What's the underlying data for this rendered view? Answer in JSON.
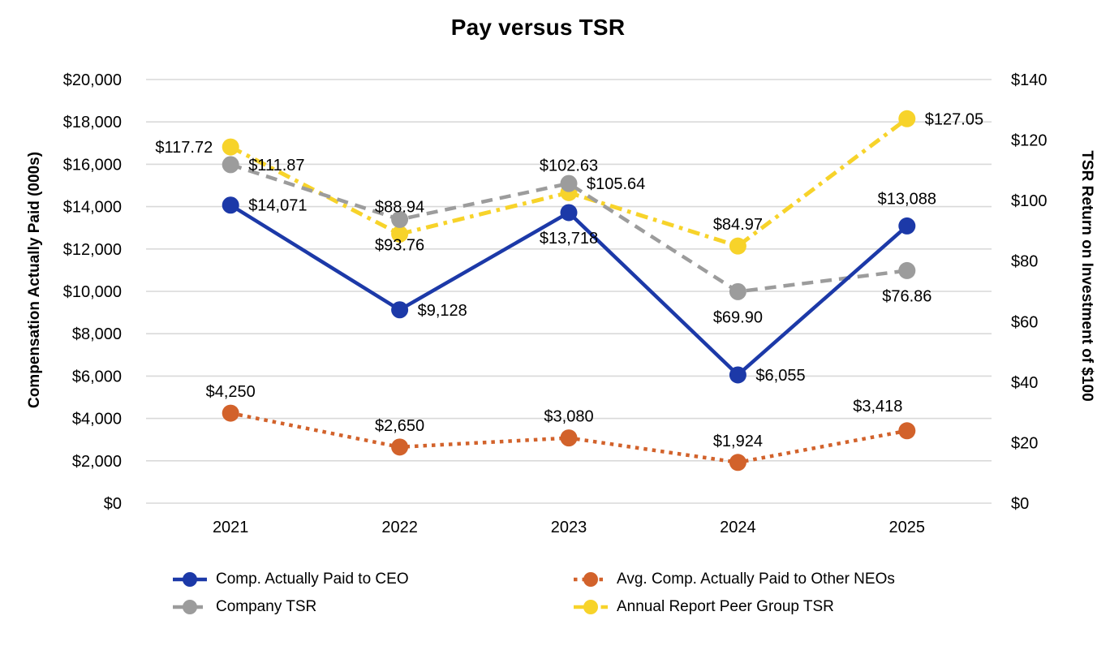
{
  "title": "Pay versus TSR",
  "chart_data": {
    "type": "line",
    "title": "Pay versus TSR",
    "categories": [
      "2021",
      "2022",
      "2023",
      "2024",
      "2025"
    ],
    "left_axis": {
      "label": "Compensation Actually Paid (000s)",
      "min": 0,
      "max": 20000,
      "step": 2000,
      "ticks": [
        "$0",
        "$2,000",
        "$4,000",
        "$6,000",
        "$8,000",
        "$10,000",
        "$12,000",
        "$14,000",
        "$16,000",
        "$18,000",
        "$20,000"
      ]
    },
    "right_axis": {
      "label": "TSR Return on Investment of $100",
      "min": 0,
      "max": 140,
      "step": 20,
      "ticks": [
        "$0",
        "$20",
        "$40",
        "$60",
        "$80",
        "$100",
        "$120",
        "$140"
      ]
    },
    "grid": "horizontal",
    "gridline_color": "#D9D9D9",
    "legend_position": "bottom",
    "series": [
      {
        "name": "Comp. Actually Paid to CEO",
        "axis": "left",
        "color": "#1C39A8",
        "line_style": "solid",
        "values": [
          14071,
          9128,
          13718,
          6055,
          13088
        ],
        "point_labels": [
          "$14,071",
          "$9,128",
          "$13,718",
          "$6,055",
          "$13,088"
        ],
        "label_positions": [
          "right",
          "right",
          "below",
          "right",
          "above-far"
        ]
      },
      {
        "name": "Avg. Comp. Actually Paid to Other NEOs",
        "axis": "left",
        "color": "#D2622B",
        "line_style": "dotted",
        "values": [
          4250,
          2650,
          3080,
          1924,
          3418
        ],
        "point_labels": [
          "$4,250",
          "$2,650",
          "$3,080",
          "$1,924",
          "$3,418"
        ],
        "label_positions": [
          "above",
          "above",
          "above",
          "above",
          "above-left"
        ]
      },
      {
        "name": "Company TSR",
        "axis": "right",
        "color": "#9C9C9C",
        "line_style": "dashed",
        "values": [
          111.87,
          93.76,
          105.64,
          69.9,
          76.86
        ],
        "point_labels": [
          "$111.87",
          "$93.76",
          "$105.64",
          "$69.90",
          "$76.86"
        ],
        "label_positions": [
          "right",
          "below",
          "right",
          "below",
          "below"
        ]
      },
      {
        "name": "Annual Report Peer Group TSR",
        "axis": "right",
        "color": "#F7D32A",
        "line_style": "dashdot",
        "values": [
          117.72,
          88.94,
          102.63,
          84.97,
          127.05
        ],
        "point_labels": [
          "$117.72",
          "$88.94",
          "$102.63",
          "$84.97",
          "$127.05"
        ],
        "label_positions": [
          "left",
          "above-far",
          "above-far",
          "above",
          "right"
        ]
      }
    ]
  }
}
